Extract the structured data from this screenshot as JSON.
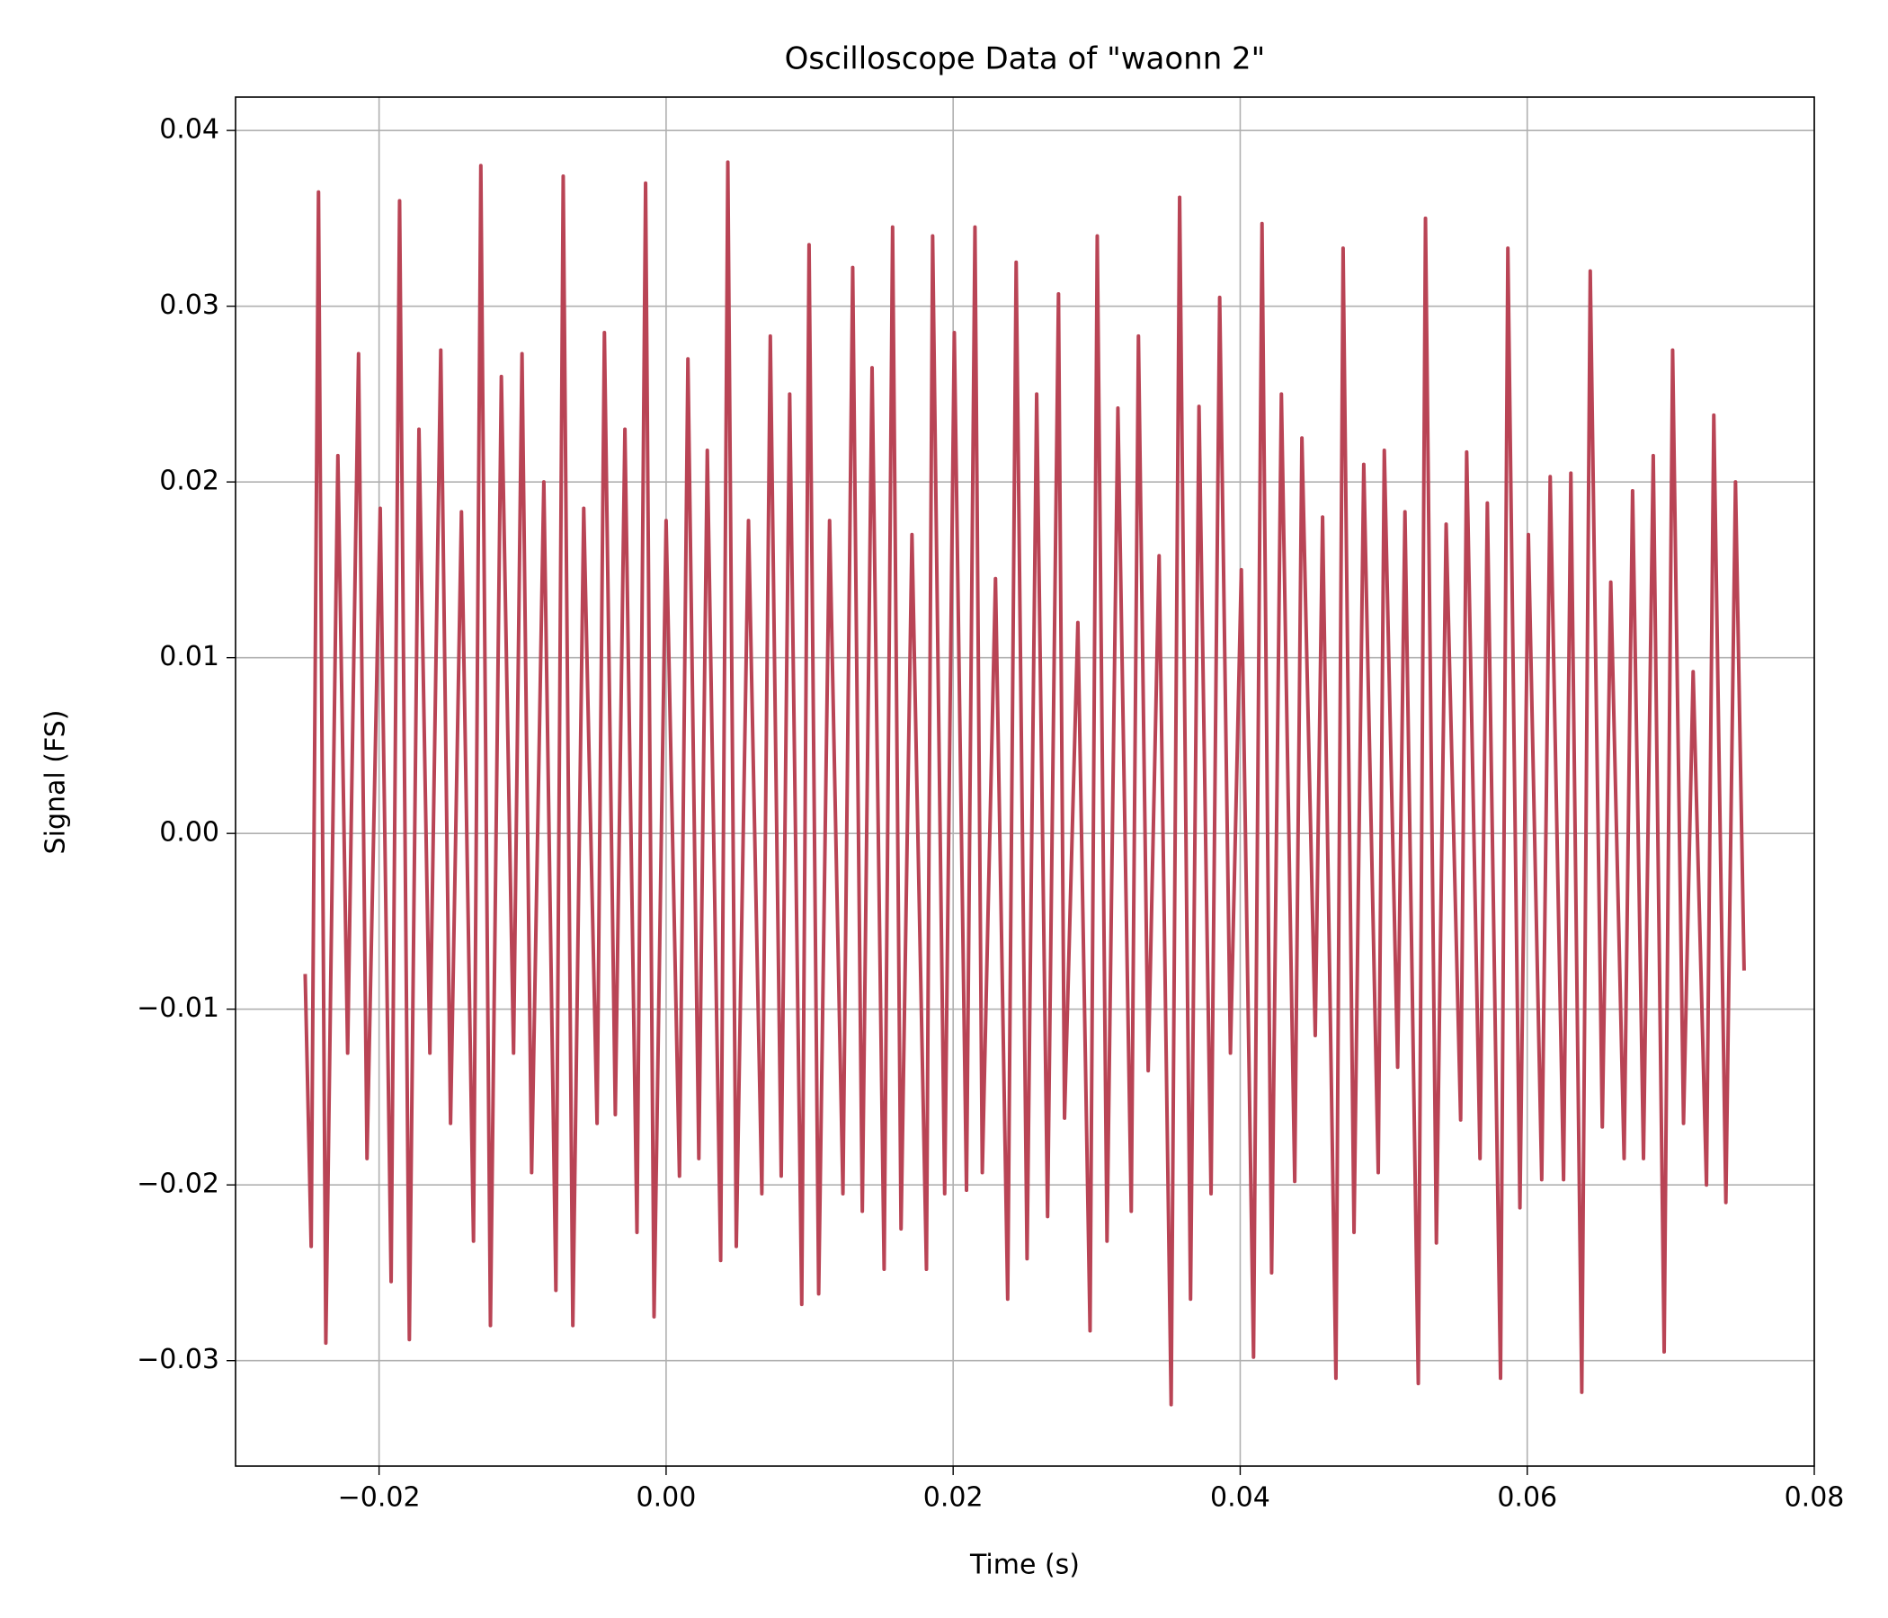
{
  "chart_data": {
    "type": "line",
    "title": "Oscilloscope Data of \"waonn 2\"",
    "x_label": "Time (s)",
    "y_label": "Signal (FS)",
    "xlim": [
      -0.03,
      0.08
    ],
    "ylim": [
      -0.036,
      0.0419
    ],
    "xticks": [
      {
        "value": -0.02,
        "label": "−0.02"
      },
      {
        "value": 0,
        "label": "0.00"
      },
      {
        "value": 0.02,
        "label": "0.02"
      },
      {
        "value": 0.04,
        "label": "0.04"
      },
      {
        "value": 0.06,
        "label": "0.06"
      },
      {
        "value": 0.08,
        "label": "0.08"
      }
    ],
    "yticks": [
      {
        "value": -0.03,
        "label": "−0.03"
      },
      {
        "value": -0.02,
        "label": "−0.02"
      },
      {
        "value": -0.01,
        "label": "−0.01"
      },
      {
        "value": 0,
        "label": "0.00"
      },
      {
        "value": 0.01,
        "label": "0.01"
      },
      {
        "value": 0.02,
        "label": "0.02"
      },
      {
        "value": 0.03,
        "label": "0.03"
      },
      {
        "value": 0.04,
        "label": "0.04"
      }
    ],
    "grid": true,
    "x": [
      -0.02515,
      -0.02473,
      -0.02422,
      -0.02371,
      -0.02287,
      -0.02219,
      -0.02143,
      -0.02084,
      -0.01992,
      -0.01916,
      -0.01857,
      -0.01789,
      -0.01722,
      -0.01646,
      -0.0157,
      -0.01502,
      -0.01426,
      -0.01342,
      -0.01291,
      -0.01224,
      -0.01148,
      -0.01063,
      -0.01004,
      -0.00937,
      -0.00852,
      -0.00768,
      -0.00717,
      -0.0065,
      -0.00574,
      -0.00481,
      -0.0043,
      -0.00354,
      -0.00287,
      -0.00203,
      -0.00143,
      -0.00084,
      0.0,
      0.00093,
      0.00152,
      0.00228,
      0.00287,
      0.0038,
      0.0043,
      0.00489,
      0.00574,
      0.00667,
      0.00726,
      0.00802,
      0.00861,
      0.00945,
      0.00996,
      0.01063,
      0.01139,
      0.01232,
      0.013,
      0.01367,
      0.01435,
      0.01519,
      0.01578,
      0.01637,
      0.01713,
      0.01814,
      0.01857,
      0.01941,
      0.02008,
      0.02093,
      0.02152,
      0.02203,
      0.02295,
      0.0238,
      0.02439,
      0.02515,
      0.02582,
      0.02658,
      0.02734,
      0.02776,
      0.02869,
      0.02954,
      0.03004,
      0.03072,
      0.03148,
      0.03241,
      0.03291,
      0.03359,
      0.03435,
      0.03519,
      0.03578,
      0.03654,
      0.03713,
      0.03797,
      0.03857,
      0.03932,
      0.04008,
      0.04093,
      0.04152,
      0.04219,
      0.04287,
      0.0438,
      0.0443,
      0.04523,
      0.04574,
      0.04667,
      0.04717,
      0.04793,
      0.04861,
      0.04962,
      0.05004,
      0.05097,
      0.05148,
      0.05241,
      0.05291,
      0.05367,
      0.05435,
      0.05536,
      0.05578,
      0.05671,
      0.05722,
      0.05814,
      0.05865,
      0.05949,
      0.06008,
      0.06101,
      0.0616,
      0.06253,
      0.06304,
      0.0638,
      0.06439,
      0.06523,
      0.06582,
      0.06675,
      0.06734,
      0.0681,
      0.06878,
      0.06954,
      0.07013,
      0.07089,
      0.07156,
      0.07249,
      0.073,
      0.07384,
      0.07451,
      0.07511
    ],
    "series": [
      {
        "color": "#b94455",
        "values": [
          -0.008,
          -0.0235,
          0.0365,
          -0.029,
          0.0215,
          -0.0125,
          0.0273,
          -0.0185,
          0.0185,
          -0.0255,
          0.036,
          -0.0288,
          0.023,
          -0.0125,
          0.0275,
          -0.0165,
          0.0183,
          -0.0232,
          0.038,
          -0.028,
          0.026,
          -0.0125,
          0.0273,
          -0.0193,
          0.02,
          -0.026,
          0.0374,
          -0.028,
          0.0185,
          -0.0165,
          0.0285,
          -0.016,
          0.023,
          -0.0227,
          0.037,
          -0.0275,
          0.0178,
          -0.0195,
          0.027,
          -0.0185,
          0.0218,
          -0.0243,
          0.0382,
          -0.0235,
          0.0178,
          -0.0205,
          0.0283,
          -0.0195,
          0.025,
          -0.0268,
          0.0335,
          -0.0262,
          0.0178,
          -0.0205,
          0.0322,
          -0.0215,
          0.0265,
          -0.0248,
          0.0345,
          -0.0225,
          0.017,
          -0.0248,
          0.034,
          -0.0205,
          0.0285,
          -0.0203,
          0.0345,
          -0.0193,
          0.0145,
          -0.0265,
          0.0325,
          -0.0242,
          0.025,
          -0.0218,
          0.0307,
          -0.0162,
          0.012,
          -0.0283,
          0.034,
          -0.0232,
          0.0242,
          -0.0215,
          0.0283,
          -0.0135,
          0.0158,
          -0.0325,
          0.0362,
          -0.0265,
          0.0243,
          -0.0205,
          0.0305,
          -0.0125,
          0.015,
          -0.0298,
          0.0347,
          -0.025,
          0.025,
          -0.0198,
          0.0225,
          -0.0115,
          0.018,
          -0.031,
          0.0333,
          -0.0227,
          0.021,
          -0.0193,
          0.0218,
          -0.0133,
          0.0183,
          -0.0313,
          0.035,
          -0.0233,
          0.0176,
          -0.0163,
          0.0217,
          -0.0185,
          0.0188,
          -0.031,
          0.0333,
          -0.0213,
          0.017,
          -0.0197,
          0.0203,
          -0.0197,
          0.0205,
          -0.0318,
          0.032,
          -0.0167,
          0.0143,
          -0.0185,
          0.0195,
          -0.0185,
          0.0215,
          -0.0295,
          0.0275,
          -0.0165,
          0.0092,
          -0.02,
          0.0238,
          -0.021,
          0.02,
          -0.0078
        ]
      }
    ]
  }
}
